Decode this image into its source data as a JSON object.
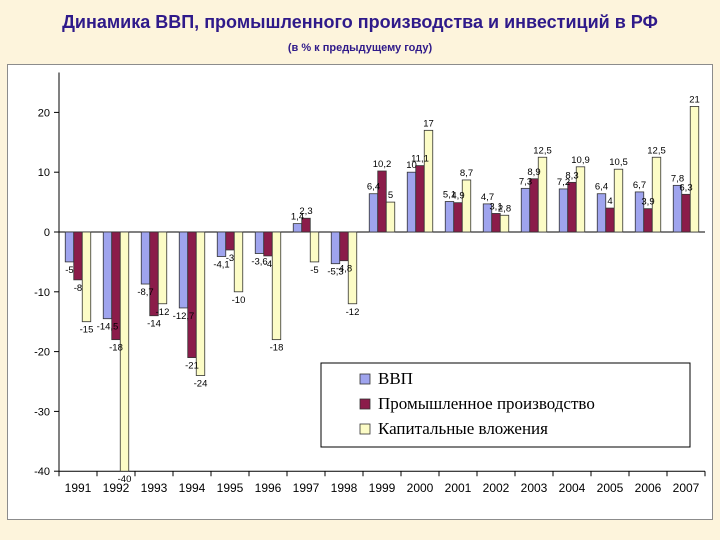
{
  "header": {
    "title": "Динамика ВВП, промышленного производства и инвестиций в РФ",
    "subtitle": "(в % к предыдущему году)"
  },
  "chart_data": {
    "type": "bar",
    "categories": [
      "1991",
      "1992",
      "1993",
      "1994",
      "1995",
      "1996",
      "1997",
      "1998",
      "1999",
      "2000",
      "2001",
      "2002",
      "2003",
      "2004",
      "2005",
      "2006",
      "2007"
    ],
    "series": [
      {
        "name": "ВВП",
        "color": "#9fa4ee",
        "values": [
          -5,
          -14.5,
          -8.7,
          -12.7,
          -4.1,
          -3.6,
          1.4,
          -5.3,
          6.4,
          10,
          5.1,
          4.7,
          7.3,
          7.2,
          6.4,
          6.7,
          7.8
        ],
        "labels": [
          "-5",
          "-14,5",
          "-8,7",
          "-12,7",
          "-4,1",
          "-3,6",
          "1,4",
          "-5,3",
          "6,4",
          "10",
          "5,1",
          "4,7",
          "7,3",
          "7,2",
          "6,4",
          "6,7",
          "7,8"
        ]
      },
      {
        "name": "Промышленное производство",
        "color": "#8b1c4a",
        "values": [
          -8,
          -18,
          -14,
          -21,
          -3,
          -4,
          2.3,
          -4.8,
          10.2,
          11.1,
          4.9,
          3.1,
          8.9,
          8.3,
          4,
          3.9,
          6.3
        ],
        "labels": [
          "-8",
          "-18",
          "-14",
          "-21",
          "-3",
          "-4",
          "2,3",
          "-4,8",
          "10,2",
          "11,1",
          "4,9",
          "3,1",
          "8,9",
          "8,3",
          "4",
          "3,9",
          "6,3"
        ]
      },
      {
        "name": "Капитальные вложения",
        "color": "#fcfcc6",
        "values": [
          -15,
          -40,
          -12,
          -24,
          -10,
          -18,
          -5,
          -12,
          5,
          17,
          8.7,
          2.8,
          12.5,
          10.9,
          10.5,
          12.5,
          21
        ],
        "labels": [
          "-15",
          "-40",
          "-12",
          "-24",
          "-10",
          "-18",
          "-5",
          "-12",
          "5",
          "17",
          "8,7",
          "2,8",
          "12,5",
          "10,9",
          "10,5",
          "12,5",
          "21"
        ]
      }
    ],
    "yticks": [
      "20",
      "10",
      "0",
      "-10",
      "-20",
      "-30",
      "-40"
    ],
    "ylim": [
      -40,
      25
    ],
    "grid": false,
    "legend": "bottom-right"
  }
}
